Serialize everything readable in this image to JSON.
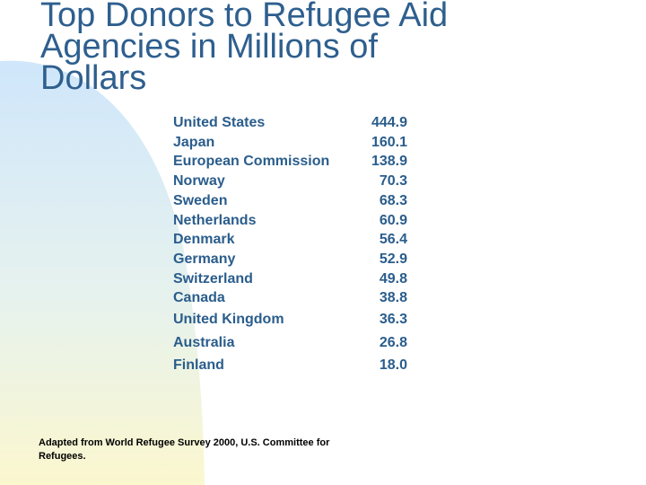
{
  "slide": {
    "title": "Top Donors to Refugee Aid\nAgencies in Millions of\nDollars",
    "donors": [
      {
        "country": "United States",
        "amount": "444.9"
      },
      {
        "country": "Japan",
        "amount": "160.1"
      },
      {
        "country": "European Commission",
        "amount": "138.9"
      },
      {
        "country": "Norway",
        "amount": "70.3"
      },
      {
        "country": "Sweden",
        "amount": "68.3"
      },
      {
        "country": "Netherlands",
        "amount": "60.9"
      },
      {
        "country": "Denmark",
        "amount": "56.4"
      },
      {
        "country": "Germany",
        "amount": "52.9"
      },
      {
        "country": "Switzerland",
        "amount": "49.8"
      },
      {
        "country": "Canada",
        "amount": "38.8"
      },
      {
        "country": "United Kingdom",
        "amount": "36.3"
      },
      {
        "country": "Australia",
        "amount": "26.8"
      },
      {
        "country": "Finland",
        "amount": "18.0"
      }
    ],
    "source_note": "Adapted from World Refugee Survey 2000, U.S. Committee for Refugees."
  },
  "colors": {
    "title": "#2e5f8e",
    "table_text": "#2a5d8c",
    "gradient_top": "#cfe6fb",
    "gradient_bottom": "#fbf7cf"
  }
}
